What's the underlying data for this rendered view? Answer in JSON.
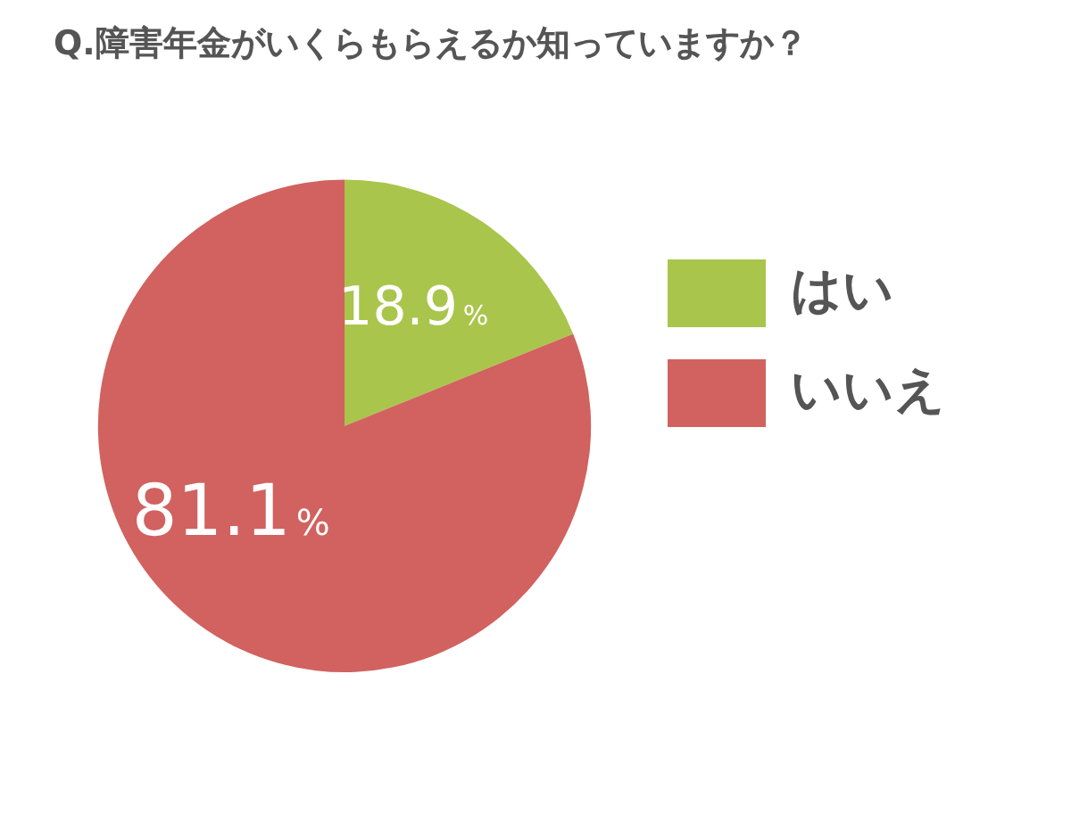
{
  "chart_data": {
    "type": "pie",
    "title": "Q.障害年金がいくらもらえるか知っていますか？",
    "categories": [
      "はい",
      "いいえ"
    ],
    "values": [
      18.9,
      81.1
    ],
    "value_labels": [
      "18.9%",
      "81.1%"
    ],
    "colors": [
      "#a9c54b",
      "#d1625f"
    ],
    "legend": "right"
  }
}
